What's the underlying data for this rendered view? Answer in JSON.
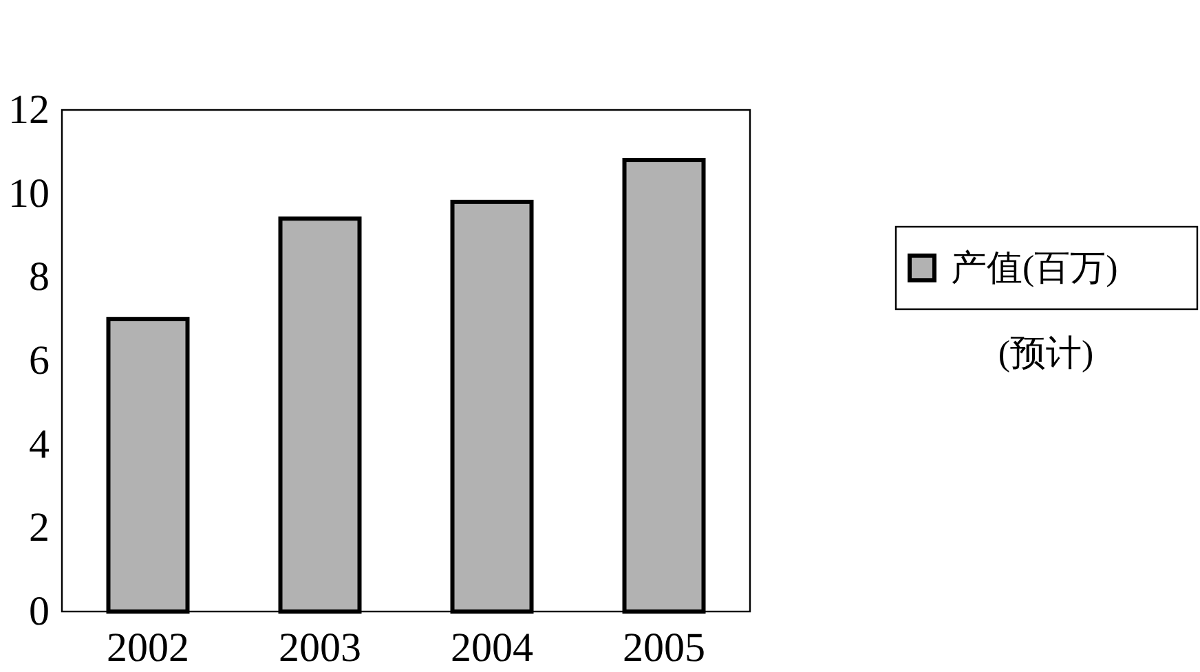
{
  "chart_data": {
    "type": "bar",
    "categories": [
      "2002",
      "2003",
      "2004",
      "2005"
    ],
    "series": [
      {
        "name": "产值(百万)",
        "color": "#b2b2b2",
        "values": [
          7,
          9.4,
          9.8,
          10.8
        ]
      }
    ],
    "ylim": [
      0,
      12
    ],
    "yticks": [
      0,
      2,
      4,
      6,
      8,
      10,
      12
    ],
    "legend": "right",
    "annotations": [
      "(预计)"
    ]
  }
}
